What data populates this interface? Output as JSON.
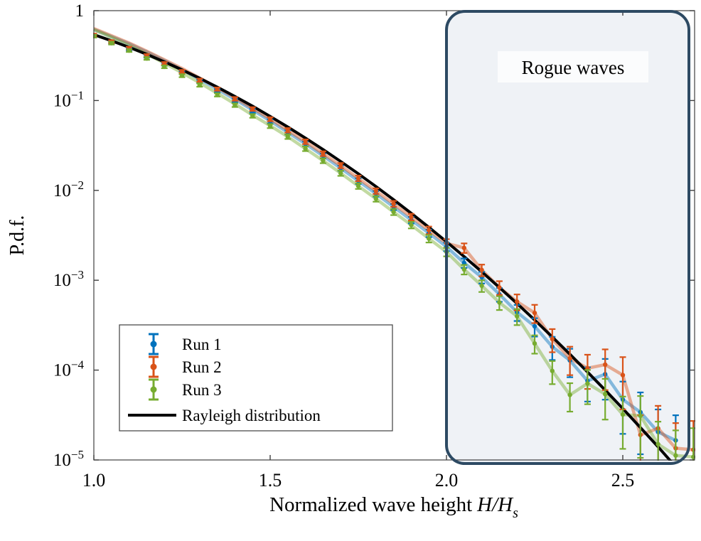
{
  "figure": {
    "ylabel": "P.d.f.",
    "xlabel_prefix": "Normalized wave height",
    "xlabel_math": "H/H",
    "xlabel_sub": "s"
  },
  "chart_data": {
    "type": "line",
    "title": "",
    "xlabel": "Normalized wave height H/Hs",
    "ylabel": "P.d.f.",
    "xlim": [
      1.0,
      2.704
    ],
    "ylim": [
      1e-05,
      1
    ],
    "grid": false,
    "legend_position": "bottom-left",
    "xticks": [
      {
        "v": 1.0,
        "label": "1.0"
      },
      {
        "v": 1.5,
        "label": "1.5"
      },
      {
        "v": 2.0,
        "label": "2.0"
      },
      {
        "v": 2.5,
        "label": "2.5"
      }
    ],
    "yticks": [
      {
        "exp": 0,
        "label": "1",
        "sup": ""
      },
      {
        "exp": -1,
        "label": "10",
        "sup": "−1"
      },
      {
        "exp": -2,
        "label": "10",
        "sup": "−2"
      },
      {
        "exp": -3,
        "label": "10",
        "sup": "−3"
      },
      {
        "exp": -4,
        "label": "10",
        "sup": "−4"
      },
      {
        "exp": -5,
        "label": "10",
        "sup": "−5"
      }
    ],
    "x": [
      1.0,
      1.05,
      1.1,
      1.15,
      1.2,
      1.25,
      1.3,
      1.35,
      1.4,
      1.45,
      1.5,
      1.55,
      1.6,
      1.65,
      1.7,
      1.75,
      1.8,
      1.85,
      1.9,
      1.95,
      2.0,
      2.05,
      2.1,
      2.15,
      2.2,
      2.25,
      2.3,
      2.35,
      2.4,
      2.45,
      2.5,
      2.55,
      2.6,
      2.65,
      2.7
    ],
    "line_boost": [
      1.18,
      1.16,
      1.14,
      1.12,
      1.1,
      1.08,
      1.06,
      1.04,
      1.03,
      1.02,
      1.01,
      1,
      1,
      1,
      1,
      1,
      1,
      1,
      1,
      1,
      1,
      1,
      1,
      1,
      1,
      1,
      1,
      1,
      1,
      1,
      1,
      1,
      1,
      1,
      1
    ],
    "error_dex": [
      0.015,
      0.015,
      0.015,
      0.015,
      0.015,
      0.016,
      0.018,
      0.018,
      0.02,
      0.02,
      0.022,
      0.024,
      0.025,
      0.026,
      0.028,
      0.03,
      0.03,
      0.032,
      0.035,
      0.04,
      0.045,
      0.05,
      0.06,
      0.07,
      0.08,
      0.09,
      0.11,
      0.13,
      0.15,
      0.17,
      0.2,
      0.22,
      0.25,
      0.28,
      0.32
    ],
    "series": [
      {
        "name": "Run 1",
        "color": "#0072BD",
        "style": "errorbar",
        "values": [
          0.525,
          0.4445,
          0.3756,
          0.3103,
          0.2533,
          0.2043,
          0.1629,
          0.1284,
          0.1,
          0.077,
          0.0587,
          0.0442,
          0.0329,
          0.0242,
          0.01764,
          0.01271,
          0.00917,
          0.00654,
          0.00467,
          0.00334,
          0.00236,
          0.00156,
          0.00108,
          0.000698,
          0.000441,
          0.000307,
          0.000182,
          0.000128,
          7.6e-05,
          9e-05,
          4.7e-05,
          3.4e-05,
          2.05e-05,
          1.65e-05,
          null
        ]
      },
      {
        "name": "Run 2",
        "color": "#D95319",
        "style": "errorbar",
        "values": [
          0.536,
          0.4537,
          0.3834,
          0.3168,
          0.2587,
          0.2109,
          0.1682,
          0.134,
          0.1044,
          0.0805,
          0.062,
          0.0467,
          0.0348,
          0.02565,
          0.0189,
          0.01363,
          0.00983,
          0.00709,
          0.00506,
          0.00361,
          0.00258,
          0.00229,
          0.0013,
          0.000831,
          0.000578,
          0.000433,
          0.000222,
          0.000135,
          0.000105,
          0.000115,
          8.8e-05,
          1.9e-05,
          2.25e-05,
          1.35e-05,
          1.3e-05
        ]
      },
      {
        "name": "Run 3",
        "color": "#77AC30",
        "style": "errorbar",
        "values": [
          0.52,
          0.4352,
          0.3599,
          0.294,
          0.2372,
          0.1889,
          0.1487,
          0.1157,
          0.0889,
          0.0675,
          0.052,
          0.0396,
          0.0291,
          0.0214,
          0.01554,
          0.01118,
          0.00806,
          0.00575,
          0.00412,
          0.00291,
          0.00207,
          0.00132,
          0.000869,
          0.000565,
          0.000397,
          0.000198,
          9.8e-05,
          5.3e-05,
          7.1e-05,
          5.4e-05,
          3.2e-05,
          3.1e-05,
          1.5e-05,
          1.12e-05,
          1.08e-05
        ]
      },
      {
        "name": "Rayleigh distribution",
        "color": "#000000",
        "style": "line",
        "values": [
          0.5413,
          0.463,
          0.3912,
          0.3266,
          0.2695,
          0.2197,
          0.177,
          0.1411,
          0.1111,
          0.08654,
          0.06665,
          0.05077,
          0.03825,
          0.0285,
          0.021,
          0.01531,
          0.01104,
          0.007879,
          0.005562,
          0.003882,
          0.002684,
          0.001834,
          0.001241,
          0.000831,
          0.000551,
          0.000361,
          0.000234,
          0.00015,
          9.52e-05,
          5.99e-05,
          3.73e-05,
          2.29e-05,
          1.4e-05,
          8.4e-06,
          5e-06
        ]
      }
    ],
    "annotation_region": {
      "label": "Rogue waves",
      "x_start": 2.0,
      "fill": "#eff2f6",
      "border": "#2d4a63"
    }
  }
}
